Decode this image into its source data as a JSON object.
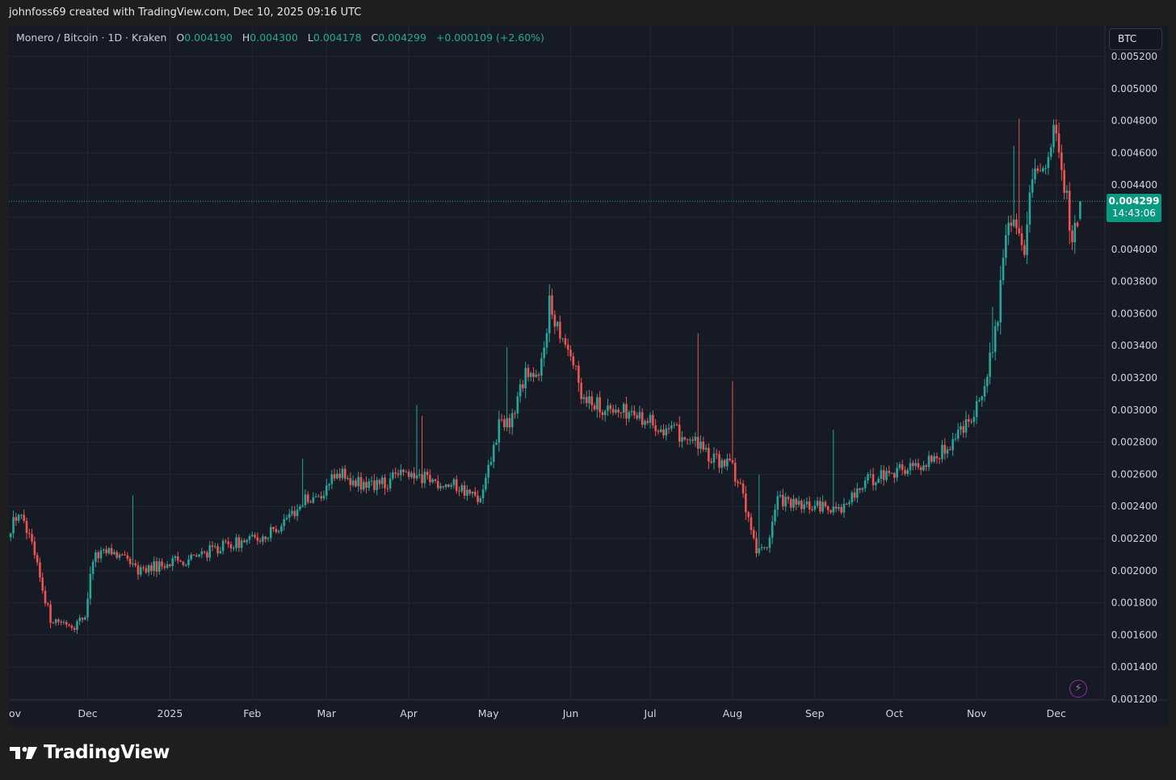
{
  "header": {
    "attribution": "johnfoss69 created with TradingView.com, Dec 10, 2025 09:16 UTC"
  },
  "legend": {
    "symbol": "Monero / Bitcoin · 1D · Kraken",
    "open_key": "O",
    "open": "0.004190",
    "high_key": "H",
    "high": "0.004300",
    "low_key": "L",
    "low": "0.004178",
    "close_key": "C",
    "close": "0.004299",
    "change": "+0.000109 (+2.60%)"
  },
  "currency_button": "BTC",
  "last_price": {
    "price": "0.004299",
    "countdown": "14:43:06"
  },
  "footer": {
    "brand": "TradingView"
  },
  "colors": {
    "up": "#26a69a",
    "down": "#ef5350",
    "background": "#161a25",
    "grid": "#232733",
    "price_line": "#22ab94"
  },
  "icons": {
    "flash": "flash-icon",
    "logo": "tradingview-logo-icon"
  },
  "chart_data": {
    "type": "candlestick",
    "title": "Monero / Bitcoin · 1D · Kraken",
    "xlabel": "",
    "ylabel": "",
    "ylim": [
      0.0012,
      0.0052
    ],
    "y_ticks": [
      "0.001200",
      "0.001400",
      "0.001600",
      "0.001800",
      "0.002000",
      "0.002200",
      "0.002400",
      "0.002600",
      "0.002800",
      "0.003000",
      "0.003200",
      "0.003400",
      "0.003600",
      "0.003800",
      "0.004000",
      "0.004200",
      "0.004400",
      "0.004600",
      "0.004800",
      "0.005000",
      "0.005200"
    ],
    "x_ticks": [
      "Nov",
      "Dec",
      "2025",
      "Feb",
      "Mar",
      "Apr",
      "May",
      "Jun",
      "Jul",
      "Aug",
      "Sep",
      "Oct",
      "Nov",
      "Dec"
    ],
    "x_ticks_display": [
      "ov",
      "Dec",
      "2025",
      "Feb",
      "Mar",
      "Apr",
      "May",
      "Jun",
      "Jul",
      "Aug",
      "Sep",
      "Oct",
      "Nov",
      "Dec"
    ],
    "x_range": [
      "2024-11-01",
      "2025-12-10"
    ],
    "grid": true,
    "close_series": {
      "x": [
        "2024-11-01",
        "2024-11-05",
        "2024-11-10",
        "2024-11-13",
        "2024-11-17",
        "2024-11-22",
        "2024-11-26",
        "2024-11-30",
        "2024-12-03",
        "2024-12-10",
        "2024-12-20",
        "2025-01-01",
        "2025-01-10",
        "2025-01-20",
        "2025-01-31",
        "2025-02-07",
        "2025-02-14",
        "2025-02-22",
        "2025-03-01",
        "2025-03-05",
        "2025-03-10",
        "2025-03-20",
        "2025-03-31",
        "2025-04-10",
        "2025-04-20",
        "2025-04-28",
        "2025-04-30",
        "2025-05-05",
        "2025-05-10",
        "2025-05-15",
        "2025-05-20",
        "2025-05-24",
        "2025-05-28",
        "2025-06-01",
        "2025-06-05",
        "2025-06-15",
        "2025-06-25",
        "2025-07-05",
        "2025-07-15",
        "2025-07-25",
        "2025-08-01",
        "2025-08-05",
        "2025-08-10",
        "2025-08-14",
        "2025-08-18",
        "2025-08-25",
        "2025-09-05",
        "2025-09-12",
        "2025-09-20",
        "2025-09-30",
        "2025-10-10",
        "2025-10-20",
        "2025-10-31",
        "2025-11-05",
        "2025-11-09",
        "2025-11-13",
        "2025-11-16",
        "2025-11-19",
        "2025-11-21",
        "2025-11-24",
        "2025-11-27",
        "2025-11-30",
        "2025-12-01",
        "2025-12-03",
        "2025-12-05",
        "2025-12-07",
        "2025-12-09",
        "2025-12-10"
      ],
      "close": [
        0.00224,
        0.00236,
        0.00215,
        0.00195,
        0.0017,
        0.00168,
        0.00166,
        0.00172,
        0.00208,
        0.00212,
        0.002,
        0.00205,
        0.00208,
        0.00215,
        0.00219,
        0.00222,
        0.00233,
        0.00245,
        0.0025,
        0.00262,
        0.00255,
        0.00253,
        0.0026,
        0.00256,
        0.00252,
        0.00243,
        0.00255,
        0.0029,
        0.00295,
        0.00325,
        0.00318,
        0.00365,
        0.0035,
        0.00335,
        0.0031,
        0.003,
        0.00298,
        0.0029,
        0.00283,
        0.0027,
        0.00265,
        0.00245,
        0.0021,
        0.00215,
        0.00245,
        0.0024,
        0.0024,
        0.0024,
        0.00255,
        0.00262,
        0.00265,
        0.00275,
        0.003,
        0.0032,
        0.0036,
        0.0042,
        0.0041,
        0.0039,
        0.0044,
        0.00445,
        0.0045,
        0.0048,
        0.00465,
        0.00445,
        0.0043,
        0.004,
        0.0042,
        0.004299
      ]
    }
  }
}
